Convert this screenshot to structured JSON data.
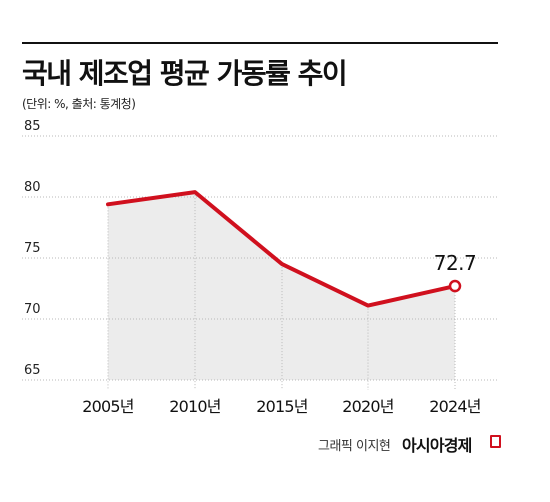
{
  "header": {
    "title": "국내 제조업 평균 가동률 추이",
    "subtitle": "(단위: %, 출처: 통계청)"
  },
  "footer": {
    "credit": "그래픽 이지현",
    "brand": "아시아경제"
  },
  "colors": {
    "line": "#d0101e",
    "area": "#ececec",
    "grid": "#b8b8b8",
    "text": "#111111"
  },
  "chart_data": {
    "type": "area",
    "x": [
      2005,
      2010,
      2015,
      2020,
      2024
    ],
    "categories": [
      "2005년",
      "2010년",
      "2015년",
      "2020년",
      "2024년"
    ],
    "series": [
      {
        "values": [
          79.4,
          80.4,
          74.5,
          71.1,
          72.7
        ]
      }
    ],
    "annotations": [
      {
        "category": "2024년",
        "label": "72.7"
      }
    ],
    "y_ticks": [
      85,
      80,
      75,
      70,
      65
    ],
    "ylim": [
      65,
      85
    ],
    "grid": true,
    "legend": "none"
  }
}
